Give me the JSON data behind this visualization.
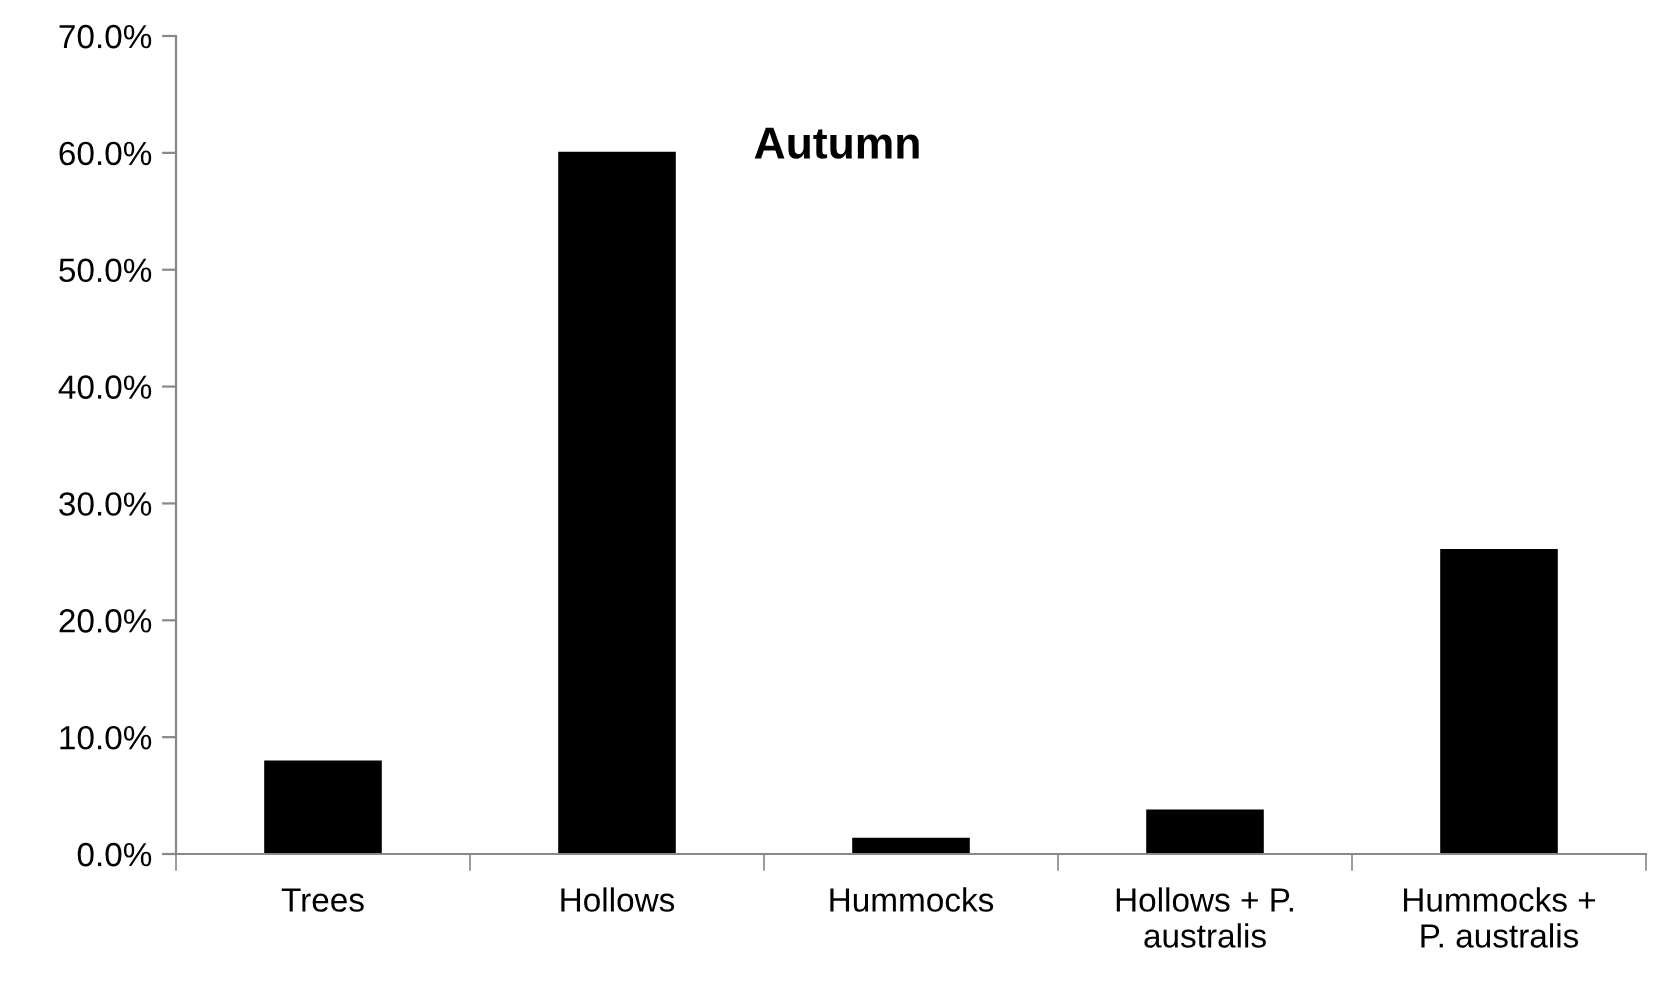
{
  "chart_data": {
    "type": "bar",
    "title": "Autumn",
    "categories": [
      "Trees",
      "Hollows",
      "Hummocks",
      "Hollows + P.\naustralis",
      "Hummocks +\nP. australis"
    ],
    "values": [
      8.0,
      60.1,
      1.4,
      3.8,
      26.1
    ],
    "color": "#000000",
    "ylim": [
      0,
      70
    ],
    "yticks": [
      {
        "value": 0,
        "label": "0.0%"
      },
      {
        "value": 10,
        "label": "10.0%"
      },
      {
        "value": 20,
        "label": "20.0%"
      },
      {
        "value": 30,
        "label": "30.0%"
      },
      {
        "value": 40,
        "label": "40.0%"
      },
      {
        "value": 50,
        "label": "50.0%"
      },
      {
        "value": 60,
        "label": "60.0%"
      },
      {
        "value": 70,
        "label": "70.0%"
      }
    ],
    "grid": false,
    "legend": false
  }
}
